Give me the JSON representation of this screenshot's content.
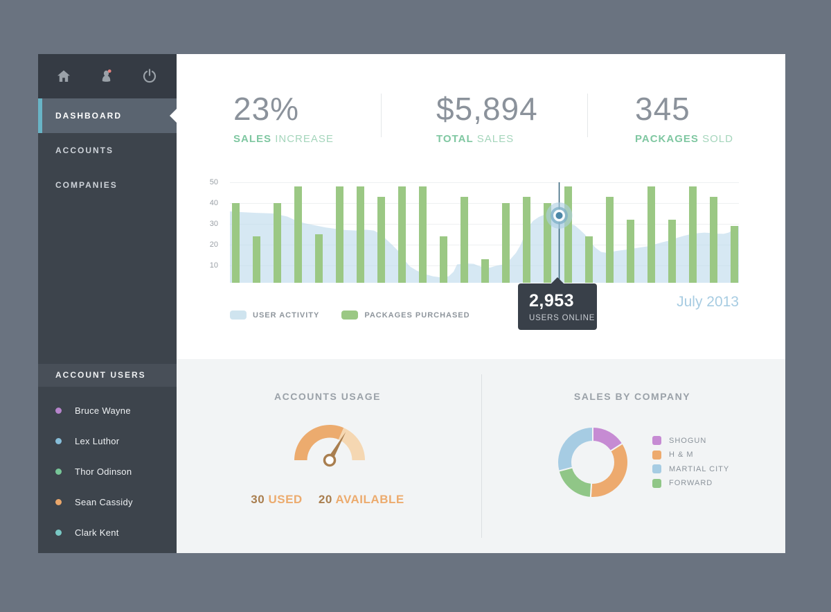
{
  "sidebar": {
    "icons": [
      {
        "name": "home-icon"
      },
      {
        "name": "user-icon",
        "notification_dot_color": "#e8837f"
      },
      {
        "name": "power-icon"
      }
    ],
    "menu": [
      {
        "label": "DASHBOARD",
        "active": true
      },
      {
        "label": "ACCOUNTS",
        "active": false
      },
      {
        "label": "COMPANIES",
        "active": false
      }
    ],
    "account_users_header": "ACCOUNT USERS",
    "users": [
      {
        "name": "Bruce Wayne",
        "dot_color": "#b684cb"
      },
      {
        "name": "Lex Luthor",
        "dot_color": "#87bed9"
      },
      {
        "name": "Thor Odinson",
        "dot_color": "#77c698"
      },
      {
        "name": "Sean Cassidy",
        "dot_color": "#eaa76b"
      },
      {
        "name": "Clark Kent",
        "dot_color": "#79c8c4"
      }
    ],
    "accent_color": "#68b4c6"
  },
  "stats": [
    {
      "value": "23%",
      "label_bold": "SALES",
      "label_rest": "INCREASE"
    },
    {
      "value": "$5,894",
      "label_bold": "TOTAL",
      "label_rest": "SALES"
    },
    {
      "value": "345",
      "label_bold": "PACKAGES",
      "label_rest": "SOLD"
    }
  ],
  "chart_data": {
    "type": "combo-bar-area",
    "title": "",
    "period": "July 2013",
    "y_ticks": [
      50,
      40,
      30,
      20,
      10
    ],
    "ylim": [
      0,
      50
    ],
    "grid": true,
    "legend_position": "bottom-left",
    "series": [
      {
        "name": "USER ACTIVITY",
        "type": "area",
        "color": "#d9e9f2",
        "points": [
          [
            0,
            36
          ],
          [
            13,
            35.7
          ],
          [
            38,
            35.3
          ],
          [
            63,
            35
          ],
          [
            83,
            33.5
          ],
          [
            96,
            31.5
          ],
          [
            108,
            30.3
          ],
          [
            123,
            29.3
          ],
          [
            138,
            28.3
          ],
          [
            153,
            27.6
          ],
          [
            168,
            27
          ],
          [
            183,
            26.8
          ],
          [
            196,
            27.2
          ],
          [
            208,
            26.8
          ],
          [
            218,
            25
          ],
          [
            226,
            22.5
          ],
          [
            234,
            20
          ],
          [
            243,
            17
          ],
          [
            251,
            13
          ],
          [
            260,
            9.5
          ],
          [
            270,
            7.5
          ],
          [
            280,
            6
          ],
          [
            293,
            4.8
          ],
          [
            306,
            4.2
          ],
          [
            316,
            4.8
          ],
          [
            323,
            7
          ],
          [
            328,
            10.5
          ],
          [
            340,
            11
          ],
          [
            352,
            10.8
          ],
          [
            360,
            9.7
          ],
          [
            368,
            8.8
          ],
          [
            376,
            9
          ],
          [
            386,
            10
          ],
          [
            396,
            10.5
          ],
          [
            405,
            13
          ],
          [
            413,
            16
          ],
          [
            420,
            20
          ],
          [
            426,
            25
          ],
          [
            432,
            29
          ],
          [
            438,
            31.5
          ],
          [
            446,
            33.3
          ],
          [
            455,
            34.6
          ],
          [
            465,
            34.4
          ],
          [
            475,
            34
          ],
          [
            483,
            32
          ],
          [
            490,
            30
          ],
          [
            498,
            29.3
          ],
          [
            506,
            27
          ],
          [
            513,
            24.8
          ],
          [
            520,
            21.5
          ],
          [
            528,
            18.5
          ],
          [
            536,
            16.5
          ],
          [
            545,
            16
          ],
          [
            555,
            16.8
          ],
          [
            565,
            17.3
          ],
          [
            575,
            17.7
          ],
          [
            585,
            18.3
          ],
          [
            595,
            18.8
          ],
          [
            605,
            19.3
          ],
          [
            615,
            20.3
          ],
          [
            625,
            21.2
          ],
          [
            635,
            22
          ],
          [
            645,
            23.2
          ],
          [
            655,
            24.2
          ],
          [
            665,
            25
          ],
          [
            675,
            25.5
          ],
          [
            685,
            25.8
          ],
          [
            695,
            25.6
          ],
          [
            705,
            25.3
          ],
          [
            713,
            25.2
          ],
          [
            720,
            25.8
          ],
          [
            726,
            27
          ],
          [
            731,
            28.5
          ],
          [
            735,
            29
          ]
        ]
      },
      {
        "name": "PACKAGES PURCHASED",
        "type": "bar",
        "color": "#9bc884",
        "values": [
          40,
          24,
          40,
          48,
          25,
          48,
          48,
          43,
          48,
          48,
          24,
          43,
          13,
          40,
          43,
          40,
          48,
          24,
          43,
          32,
          48,
          32,
          48,
          43,
          29
        ]
      }
    ],
    "highlight": {
      "x": 475,
      "value": 34,
      "line_color": "#35637a",
      "dot_color": "#4c87a7"
    }
  },
  "tooltip": {
    "value": "2,953",
    "label": "USERS ONLINE"
  },
  "period_label": "July 2013",
  "accounts_usage": {
    "title": "ACCOUNTS USAGE",
    "used": 30,
    "used_label": "USED",
    "available": 20,
    "available_label": "AVAILABLE",
    "arc_used_color": "#ecab6e",
    "arc_available_color": "#f5d7b2",
    "needle_color": "#a97e4f"
  },
  "sales_by_company": {
    "title": "SALES BY COMPANY",
    "slices": [
      {
        "label": "SHOGUN",
        "color": "#c68bd3",
        "value": 16
      },
      {
        "label": "H & M",
        "color": "#edaa6e",
        "value": 35
      },
      {
        "label": "MARTIAL CITY",
        "color": "#a6cce3",
        "value": 29
      },
      {
        "label": "FORWARD",
        "color": "#90c687",
        "value": 20
      }
    ],
    "draw_order": [
      0,
      1,
      3,
      2
    ]
  }
}
